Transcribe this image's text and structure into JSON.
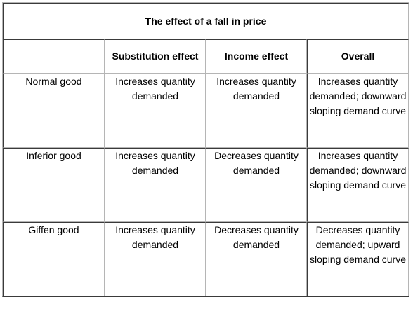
{
  "table": {
    "title": "The effect of a fall in price",
    "headers": [
      "",
      "Substitution effect",
      "Income effect",
      "Overall"
    ],
    "rows": [
      {
        "label": "Normal good",
        "substitution": "Increases quantity demanded",
        "income": "Increases quantity demanded",
        "overall": "Increases quantity demanded; downward sloping demand curve"
      },
      {
        "label": "Inferior good",
        "substitution": "Increases quantity demanded",
        "income": "Decreases quantity demanded",
        "overall": "Increases quantity demanded; downward sloping demand curve"
      },
      {
        "label": "Giffen good",
        "substitution": "Increases quantity demanded",
        "income": "Decreases quantity demanded",
        "overall": "Decreases quantity demanded; upward sloping demand curve"
      }
    ]
  }
}
